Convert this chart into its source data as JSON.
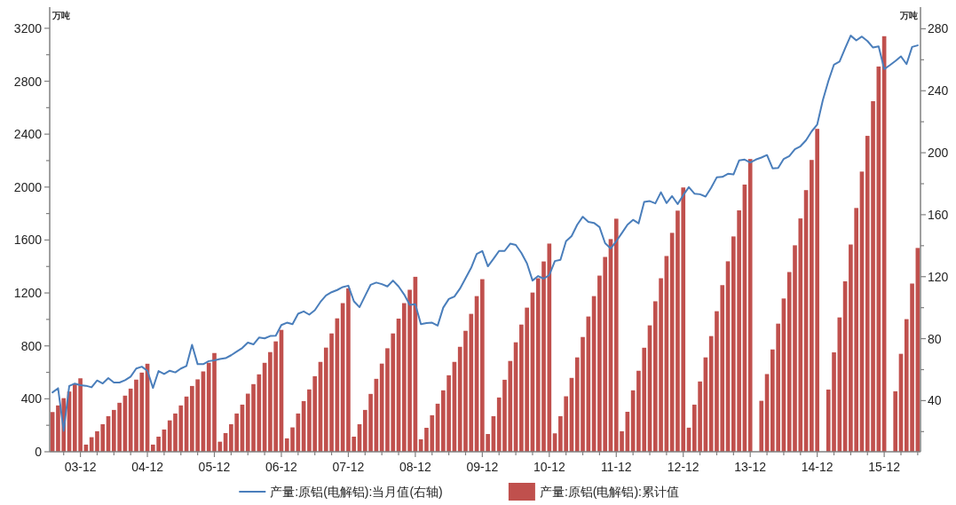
{
  "chart_data": {
    "type": "bar",
    "categories": [
      null,
      null,
      null,
      null,
      null,
      "03-12",
      null,
      null,
      null,
      null,
      null,
      null,
      null,
      null,
      null,
      null,
      null,
      "04-12",
      null,
      null,
      null,
      null,
      null,
      null,
      null,
      null,
      null,
      null,
      null,
      "05-12",
      null,
      null,
      null,
      null,
      null,
      null,
      null,
      null,
      null,
      null,
      null,
      "06-12",
      null,
      null,
      null,
      null,
      null,
      null,
      null,
      null,
      null,
      null,
      null,
      "07-12",
      null,
      null,
      null,
      null,
      null,
      null,
      null,
      null,
      null,
      null,
      null,
      "08-12",
      null,
      null,
      null,
      null,
      null,
      null,
      null,
      null,
      null,
      null,
      null,
      "09-12",
      null,
      null,
      null,
      null,
      null,
      null,
      null,
      null,
      null,
      null,
      null,
      "10-12",
      null,
      null,
      null,
      null,
      null,
      null,
      null,
      null,
      null,
      null,
      null,
      "11-12",
      null,
      null,
      null,
      null,
      null,
      null,
      null,
      null,
      null,
      null,
      null,
      "12-12",
      null,
      null,
      null,
      null,
      null,
      null,
      null,
      null,
      null,
      null,
      null,
      "13-12",
      null,
      null,
      null,
      null,
      null,
      null,
      null,
      null,
      null,
      null,
      null,
      "14-12",
      null,
      null,
      null,
      null,
      null,
      null,
      null,
      null,
      null,
      null,
      null,
      "15-12",
      null,
      null,
      null,
      null,
      null,
      null
    ],
    "series": [
      {
        "name": "产量:原铝(电解铝):当月值(右轴)",
        "type": "line",
        "axis": "y2",
        "color": "#4a7ebb",
        "values": [
          45.3,
          48,
          20.5,
          49.5,
          51,
          50,
          49.6,
          48.6,
          53.0,
          51.1,
          54.5,
          51.7,
          51.7,
          53.2,
          55.5,
          60.7,
          61.9,
          59.3,
          48.2,
          59.1,
          57.2,
          59.3,
          58.2,
          60.7,
          62.4,
          76.0,
          63.5,
          63.5,
          65.5,
          66.0,
          66.9,
          67.4,
          69.3,
          71.7,
          74.0,
          77.5,
          76.3,
          80.7,
          80.2,
          81.7,
          81.9,
          88.8,
          90.3,
          89.4,
          96.1,
          97.6,
          95.5,
          98.4,
          103.7,
          107.9,
          110.0,
          111.4,
          113.3,
          114.2,
          104.1,
          100.3,
          107.6,
          114.8,
          116.2,
          115.2,
          113.7,
          117.5,
          113.7,
          108.5,
          101.8,
          102.2,
          89.4,
          90.0,
          90.3,
          88.4,
          100.0,
          105.6,
          107.2,
          112.3,
          119.0,
          125.7,
          134.7,
          136.6,
          126.7,
          131.5,
          136.6,
          136.6,
          141.3,
          140.5,
          135.3,
          128.6,
          117.5,
          120.4,
          118.7,
          121.0,
          130.1,
          130.9,
          142.9,
          146.2,
          153.5,
          158.7,
          155.4,
          154.7,
          152.0,
          141.6,
          138.2,
          142.9,
          148.1,
          153.5,
          156.7,
          154.4,
          168.2,
          168.8,
          167.3,
          174.5,
          167.5,
          172.0,
          166.9,
          172.6,
          177.8,
          173.6,
          173.2,
          171.7,
          177.4,
          184.1,
          184.4,
          186.4,
          186.0,
          195.0,
          195.6,
          193.7,
          195.6,
          196.9,
          198.5,
          189.9,
          190.2,
          196.0,
          197.9,
          202.3,
          204.2,
          208.1,
          213.8,
          218.2,
          233.9,
          246.3,
          256.9,
          258.8,
          267.4,
          275.6,
          272.5,
          275.0,
          272.1,
          267.9,
          268.7,
          254.0,
          256.5,
          259.2,
          262.2,
          257.2,
          268.3,
          269.3
        ]
      },
      {
        "name": "产量:原铝(电解铝):累计值",
        "color": "#c0504d",
        "values": [
          300,
          350,
          405,
          455,
          515,
          555,
          54,
          110,
          155,
          208,
          269,
          316,
          370,
          424,
          477,
          545,
          598,
          665,
          54,
          114,
          168,
          237,
          289,
          350,
          417,
          497,
          547,
          607,
          672,
          746,
          76,
          141,
          208,
          289,
          356,
          439,
          511,
          585,
          672,
          753,
          834,
          921,
          101,
          184,
          289,
          383,
          471,
          571,
          679,
          787,
          894,
          1008,
          1123,
          1235,
          114,
          208,
          316,
          437,
          551,
          666,
          782,
          894,
          1006,
          1123,
          1224,
          1322,
          94,
          181,
          276,
          363,
          464,
          578,
          679,
          793,
          914,
          1042,
          1176,
          1304,
          134,
          269,
          410,
          544,
          686,
          827,
          961,
          1089,
          1203,
          1311,
          1438,
          1573,
          139,
          269,
          419,
          558,
          713,
          867,
          1022,
          1176,
          1331,
          1472,
          1607,
          1761,
          155,
          302,
          464,
          612,
          786,
          955,
          1137,
          1311,
          1479,
          1654,
          1822,
          1997,
          182,
          356,
          531,
          713,
          874,
          1062,
          1259,
          1439,
          1627,
          1824,
          2019,
          2212,
          null,
          385,
          587,
          773,
          968,
          1158,
          1358,
          1560,
          1763,
          1977,
          2205,
          2440,
          null,
          470,
          751,
          1015,
          1288,
          1566,
          1842,
          2117,
          2387,
          2649,
          2911,
          3140,
          null,
          457,
          740,
          1002,
          1271,
          1540
        ]
      }
    ],
    "ylabel": "万吨",
    "y2label": "万吨",
    "ylim": [
      0,
      3360
    ],
    "yticks": [
      0,
      {
        "value": 200,
        "label": null
      },
      400,
      {
        "value": 600,
        "label": null
      },
      800,
      {
        "value": 1000,
        "label": null
      },
      1200,
      {
        "value": 1400,
        "label": null
      },
      1600,
      {
        "value": 1800,
        "label": null
      },
      2000,
      {
        "value": 2200,
        "label": null
      },
      2400,
      {
        "value": 2600,
        "label": null
      },
      2800,
      {
        "value": 3000,
        "label": null
      },
      3200
    ],
    "y2lim": [
      7,
      294
    ],
    "y2ticks": [
      {
        "value": 20,
        "label": null
      },
      40,
      {
        "value": 60,
        "label": null
      },
      80,
      {
        "value": 100,
        "label": null
      },
      120,
      {
        "value": 140,
        "label": null
      },
      160,
      {
        "value": 180,
        "label": null
      },
      200,
      {
        "value": 220,
        "label": null
      },
      240,
      {
        "value": 260,
        "label": null
      },
      280
    ],
    "legend": "bottom"
  }
}
